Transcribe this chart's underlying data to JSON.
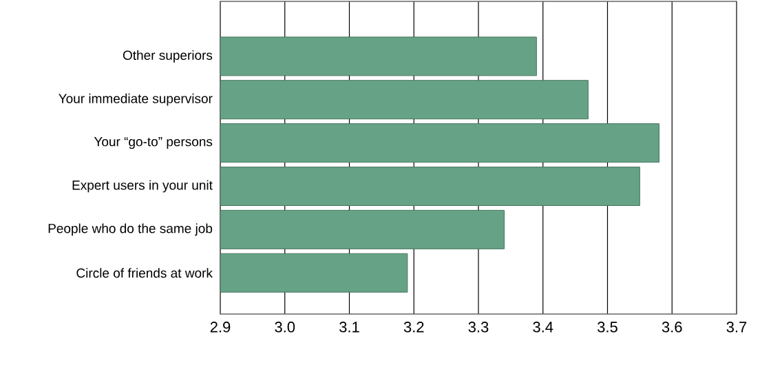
{
  "chart_data": {
    "type": "bar",
    "orientation": "horizontal",
    "categories": [
      "Other superiors",
      "Your immediate supervisor",
      "Your “go-to” persons",
      "Expert users in your unit",
      "People who do the same job",
      "Circle of friends at work"
    ],
    "values": [
      3.39,
      3.47,
      3.58,
      3.55,
      3.34,
      3.19
    ],
    "color": "#66a386",
    "xlim": [
      2.9,
      3.7
    ],
    "xticks": [
      2.9,
      {
        "value": 3.0,
        "label": "3.0"
      },
      3.1,
      3.2,
      3.3,
      3.4,
      3.5,
      3.6,
      3.7
    ],
    "grid": "x"
  }
}
